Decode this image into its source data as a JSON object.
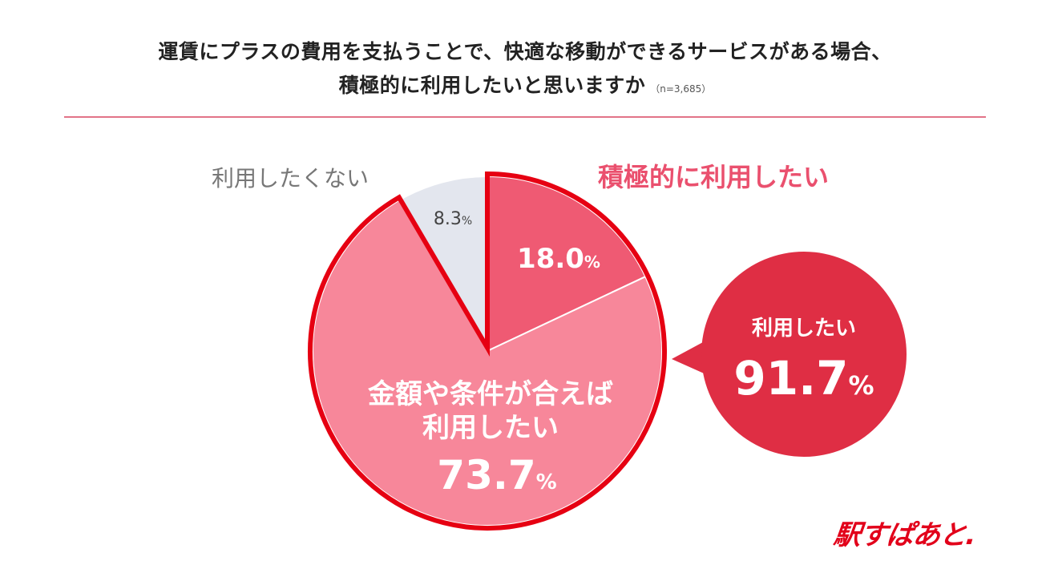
{
  "title": {
    "line1": "運賃にプラスの費用を支払うことで、快適な移動ができるサービスがある場合、",
    "line2": "積極的に利用したいと思いますか",
    "sample": "（n=3,685）"
  },
  "chart_data": {
    "type": "pie",
    "slices": [
      {
        "label": "積極的に利用したい",
        "value": 18.0,
        "display": "18.0",
        "color": "#ef5a73"
      },
      {
        "label_lines": [
          "金額や条件が合えば",
          "利用したい"
        ],
        "value": 73.7,
        "display": "73.7",
        "color": "#f7879a"
      },
      {
        "label": "利用したくない",
        "value": 8.3,
        "display": "8.3",
        "color": "#e3e6ee"
      }
    ],
    "percent_sign": "%",
    "highlight_color": "#e60012",
    "label_colors": {
      "positive": "#ea506e",
      "negative": "#777777"
    },
    "callout": {
      "label": "利用したい",
      "value": 91.7,
      "display": "91.7",
      "color": "#df2e44"
    }
  },
  "logo": {
    "text": "駅すぱあと."
  }
}
